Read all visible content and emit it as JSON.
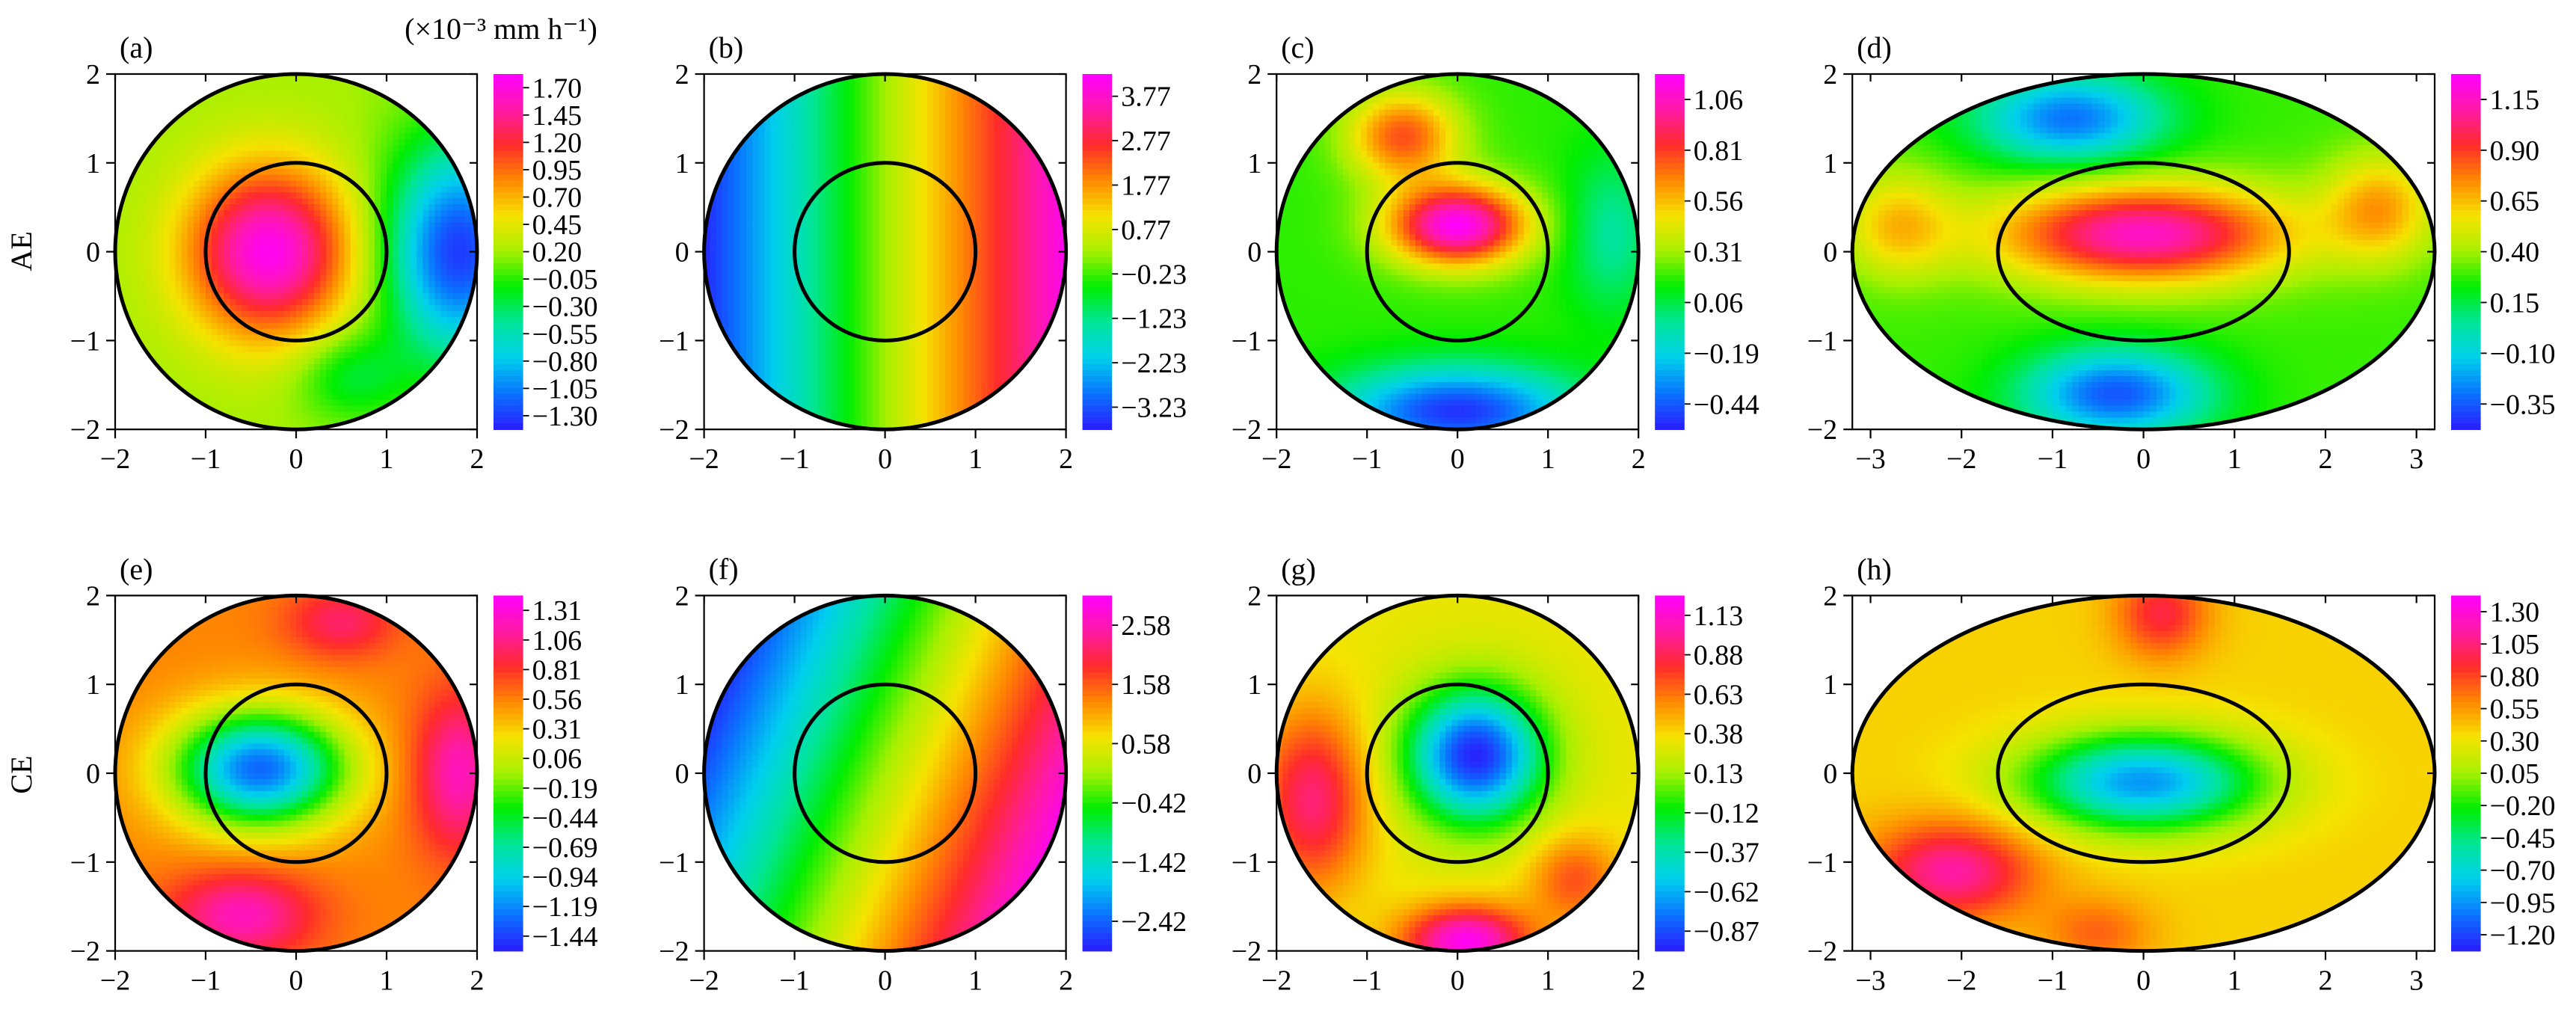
{
  "figure": {
    "unit_label": "(×10⁻³ mm h⁻¹)",
    "row_labels": [
      "AE",
      "CE"
    ]
  },
  "colormap": [
    "#2a1cff",
    "#0a73ff",
    "#00cfee",
    "#00e59a",
    "#00ee00",
    "#a6f000",
    "#f5e300",
    "#ff8a00",
    "#ff2b2b",
    "#ff1aa8",
    "#ff00ff"
  ],
  "chart_data": [
    {
      "panel": "(a)",
      "type": "heatmap",
      "shape": "circle",
      "xlim": [
        -2,
        2
      ],
      "ylim": [
        -2,
        2
      ],
      "xticks": [
        "-2",
        "-1",
        "0",
        "1",
        "2"
      ],
      "yticks": [
        "-2",
        "-1",
        "0",
        "1",
        "2"
      ],
      "colorbar_min": -1.3,
      "colorbar_max": 1.7,
      "colorbar_ticks": [
        "1.70",
        "1.45",
        "1.20",
        "0.95",
        "0.70",
        "0.45",
        "0.20",
        "−0.05",
        "−0.30",
        "−0.55",
        "−0.80",
        "−1.05",
        "−1.30"
      ],
      "field": {
        "base": 0.2,
        "terms": [
          {
            "x": -0.3,
            "y": 0,
            "sx": 0.9,
            "sy": 0.95,
            "a": 1.45
          },
          {
            "x": 1.8,
            "y": 0,
            "sx": 0.8,
            "sy": 1.2,
            "a": -1.4
          },
          {
            "x": 0.6,
            "y": -1.4,
            "sx": 0.6,
            "sy": 0.5,
            "a": -0.4
          }
        ]
      }
    },
    {
      "panel": "(b)",
      "type": "heatmap",
      "shape": "circle",
      "xlim": [
        -2,
        2
      ],
      "ylim": [
        -2,
        2
      ],
      "xticks": [
        "-2",
        "-1",
        "0",
        "1",
        "2"
      ],
      "yticks": [
        "-2",
        "-1",
        "0",
        "1",
        "2"
      ],
      "colorbar_min": -3.23,
      "colorbar_max": 3.77,
      "colorbar_ticks": [
        "3.77",
        "2.77",
        "1.77",
        "0.77",
        "−0.23",
        "−1.23",
        "−2.23",
        "−3.23"
      ],
      "field": {
        "base": 0.25,
        "gx": 1.7,
        "gy": 0.0,
        "terms": []
      }
    },
    {
      "panel": "(c)",
      "type": "heatmap",
      "shape": "circle",
      "xlim": [
        -2,
        2
      ],
      "ylim": [
        -2,
        2
      ],
      "xticks": [
        "-2",
        "-1",
        "0",
        "1",
        "2"
      ],
      "yticks": [
        "-2",
        "-1",
        "0",
        "1",
        "2"
      ],
      "colorbar_min": -0.44,
      "colorbar_max": 1.06,
      "colorbar_ticks": [
        "1.06",
        "0.81",
        "0.56",
        "0.31",
        "0.06",
        "−0.19",
        "−0.44"
      ],
      "field": {
        "base": 0.2,
        "terms": [
          {
            "x": 0,
            "y": 0.3,
            "sx": 0.75,
            "sy": 0.45,
            "a": 0.85
          },
          {
            "x": -0.6,
            "y": 1.3,
            "sx": 0.6,
            "sy": 0.5,
            "a": 0.5
          },
          {
            "x": 0,
            "y": -1.8,
            "sx": 1.3,
            "sy": 0.5,
            "a": -0.6
          },
          {
            "x": 1.7,
            "y": 0.2,
            "sx": 0.5,
            "sy": 0.9,
            "a": -0.2
          }
        ]
      }
    },
    {
      "panel": "(d)",
      "type": "heatmap",
      "shape": "ellipse",
      "xlim": [
        -3.2,
        3.2
      ],
      "ylim": [
        -2,
        2
      ],
      "xticks": [
        "-3",
        "-2",
        "-1",
        "0",
        "1",
        "2",
        "3"
      ],
      "yticks": [
        "-2",
        "-1",
        "0",
        "1",
        "2"
      ],
      "colorbar_min": -0.35,
      "colorbar_max": 1.15,
      "colorbar_ticks": [
        "1.15",
        "0.90",
        "0.65",
        "0.40",
        "0.15",
        "−0.10",
        "−0.35"
      ],
      "field": {
        "base": 0.3,
        "terms": [
          {
            "x": 0,
            "y": 0.2,
            "sx": 1.6,
            "sy": 0.55,
            "a": 0.75
          },
          {
            "x": -0.8,
            "y": 1.5,
            "sx": 1.0,
            "sy": 0.5,
            "a": -0.5
          },
          {
            "x": -0.3,
            "y": -1.6,
            "sx": 1.0,
            "sy": 0.5,
            "a": -0.55
          },
          {
            "x": 2.6,
            "y": 0.5,
            "sx": 0.6,
            "sy": 0.6,
            "a": 0.35
          },
          {
            "x": -2.7,
            "y": 0.3,
            "sx": 0.6,
            "sy": 0.6,
            "a": 0.3
          }
        ]
      }
    },
    {
      "panel": "(e)",
      "type": "heatmap",
      "shape": "circle",
      "xlim": [
        -2,
        2
      ],
      "ylim": [
        -2,
        2
      ],
      "xticks": [
        "-2",
        "-1",
        "0",
        "1",
        "2"
      ],
      "yticks": [
        "-2",
        "-1",
        "0",
        "1",
        "2"
      ],
      "colorbar_min": -1.44,
      "colorbar_max": 1.31,
      "colorbar_ticks": [
        "1.31",
        "1.06",
        "0.81",
        "0.56",
        "0.31",
        "0.06",
        "−0.19",
        "−0.44",
        "−0.69",
        "−0.94",
        "−1.19",
        "−1.44"
      ],
      "field": {
        "base": 0.5,
        "terms": [
          {
            "x": -0.4,
            "y": 0.05,
            "sx": 0.95,
            "sy": 0.65,
            "a": -1.7
          },
          {
            "x": 1.8,
            "y": 0,
            "sx": 0.5,
            "sy": 0.9,
            "a": 0.6
          },
          {
            "x": -0.6,
            "y": -1.6,
            "sx": 0.8,
            "sy": 0.5,
            "a": 0.6
          },
          {
            "x": 0.5,
            "y": 1.7,
            "sx": 0.6,
            "sy": 0.4,
            "a": 0.4
          }
        ]
      }
    },
    {
      "panel": "(f)",
      "type": "heatmap",
      "shape": "circle",
      "xlim": [
        -2,
        2
      ],
      "ylim": [
        -2,
        2
      ],
      "xticks": [
        "-2",
        "-1",
        "0",
        "1",
        "2"
      ],
      "yticks": [
        "-2",
        "-1",
        "0",
        "1",
        "2"
      ],
      "colorbar_min": -2.42,
      "colorbar_max": 2.58,
      "colorbar_ticks": [
        "2.58",
        "1.58",
        "0.58",
        "−0.42",
        "−1.42",
        "−2.42"
      ],
      "field": {
        "base": 0.1,
        "gx": 1.1,
        "gy": -0.45,
        "terms": []
      }
    },
    {
      "panel": "(g)",
      "type": "heatmap",
      "shape": "circle",
      "xlim": [
        -2,
        2
      ],
      "ylim": [
        -2,
        2
      ],
      "xticks": [
        "-2",
        "-1",
        "0",
        "1",
        "2"
      ],
      "yticks": [
        "-2",
        "-1",
        "0",
        "1",
        "2"
      ],
      "colorbar_min": -0.87,
      "colorbar_max": 1.13,
      "colorbar_ticks": [
        "1.13",
        "0.88",
        "0.63",
        "0.38",
        "0.13",
        "−0.12",
        "−0.37",
        "−0.62",
        "−0.87"
      ],
      "field": {
        "base": 0.3,
        "terms": [
          {
            "x": 0.2,
            "y": 0.2,
            "sx": 0.75,
            "sy": 0.75,
            "a": -1.15
          },
          {
            "x": -1.6,
            "y": -0.3,
            "sx": 0.6,
            "sy": 1.0,
            "a": 0.55
          },
          {
            "x": 0.1,
            "y": -1.9,
            "sx": 0.7,
            "sy": 0.4,
            "a": 0.8
          },
          {
            "x": 1.3,
            "y": -1.2,
            "sx": 0.5,
            "sy": 0.5,
            "a": 0.35
          }
        ]
      }
    },
    {
      "panel": "(h)",
      "type": "heatmap",
      "shape": "ellipse",
      "xlim": [
        -3.2,
        3.2
      ],
      "ylim": [
        -2,
        2
      ],
      "xticks": [
        "-3",
        "-2",
        "-1",
        "0",
        "1",
        "2",
        "3"
      ],
      "yticks": [
        "-2",
        "-1",
        "0",
        "1",
        "2"
      ],
      "colorbar_min": -1.2,
      "colorbar_max": 1.3,
      "colorbar_ticks": [
        "1.30",
        "1.05",
        "0.80",
        "0.55",
        "0.30",
        "0.05",
        "−0.20",
        "−0.45",
        "−0.70",
        "−0.95",
        "−1.20"
      ],
      "field": {
        "base": 0.35,
        "terms": [
          {
            "x": 0,
            "y": -0.1,
            "sx": 1.3,
            "sy": 0.55,
            "a": -1.2
          },
          {
            "x": -2.1,
            "y": -1.1,
            "sx": 0.9,
            "sy": 0.55,
            "a": 0.7
          },
          {
            "x": 0.2,
            "y": 1.8,
            "sx": 0.5,
            "sy": 0.5,
            "a": 0.5
          },
          {
            "x": -0.5,
            "y": -1.8,
            "sx": 0.6,
            "sy": 0.4,
            "a": 0.3
          }
        ]
      }
    }
  ]
}
